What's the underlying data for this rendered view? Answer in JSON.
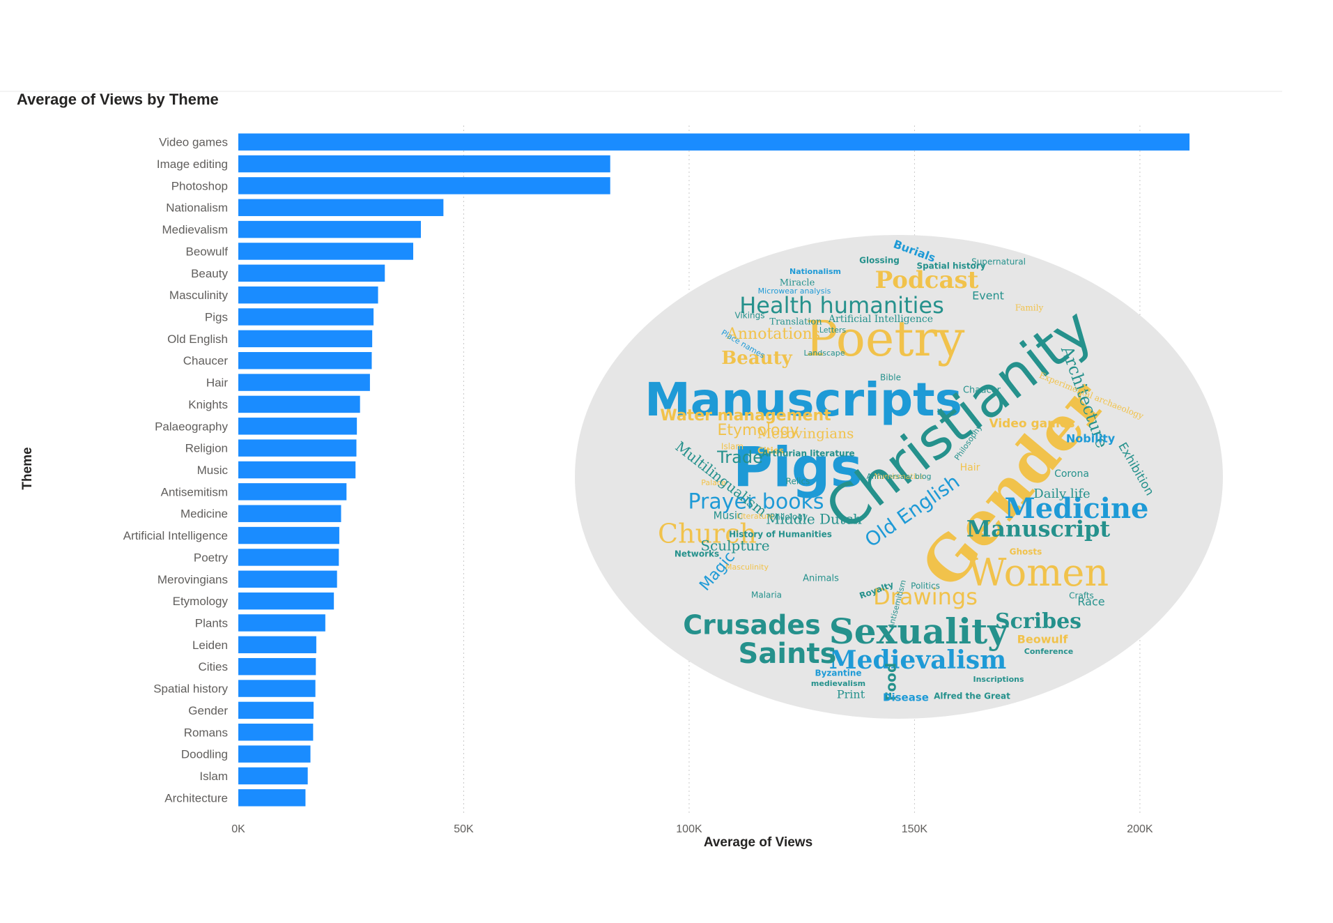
{
  "chart_data": {
    "type": "bar",
    "orientation": "horizontal",
    "title": "Average of Views by Theme",
    "xlabel": "Average of Views",
    "ylabel": "Theme",
    "xlim": [
      0,
      230000
    ],
    "x_ticks": [
      {
        "value": 0,
        "label": "0K"
      },
      {
        "value": 50000,
        "label": "50K"
      },
      {
        "value": 100000,
        "label": "100K"
      },
      {
        "value": 150000,
        "label": "150K"
      },
      {
        "value": 200000,
        "label": "200K"
      }
    ],
    "grid": "vertical dotted",
    "legend": "none",
    "bar_color": "#1a8cff",
    "categories": [
      "Video games",
      "Image editing",
      "Photoshop",
      "Nationalism",
      "Medievalism",
      "Beowulf",
      "Beauty",
      "Masculinity",
      "Pigs",
      "Old English",
      "Chaucer",
      "Hair",
      "Knights",
      "Palaeography",
      "Religion",
      "Music",
      "Antisemitism",
      "Medicine",
      "Artificial Intelligence",
      "Poetry",
      "Merovingians",
      "Etymology",
      "Plants",
      "Leiden",
      "Cities",
      "Spatial history",
      "Gender",
      "Romans",
      "Doodling",
      "Islam",
      "Architecture"
    ],
    "values": [
      211000,
      82500,
      82500,
      45500,
      40500,
      38800,
      32500,
      31000,
      30000,
      29700,
      29600,
      29200,
      27000,
      26300,
      26200,
      26000,
      24000,
      22800,
      22400,
      22300,
      21900,
      21200,
      19300,
      17300,
      17200,
      17100,
      16700,
      16600,
      16000,
      15400,
      14900
    ]
  },
  "wordcloud": {
    "colors": {
      "blue": "#1e9ad6",
      "teal": "#25918c",
      "gold": "#f1c24b",
      "gray": "#e6e6e6"
    },
    "words": [
      {
        "text": "Manuscripts",
        "color": "blue",
        "size": 66,
        "weight": "bold",
        "family": "sans",
        "rotate": 0
      },
      {
        "text": "Pigs",
        "color": "blue",
        "size": 78,
        "weight": "bold",
        "family": "sans",
        "rotate": 0
      },
      {
        "text": "Christianity",
        "color": "teal",
        "size": 80,
        "weight": "normal",
        "family": "sans",
        "rotate": -38
      },
      {
        "text": "Gender",
        "color": "gold",
        "size": 86,
        "weight": "bold",
        "family": "serif",
        "rotate": -50
      },
      {
        "text": "Poetry",
        "color": "gold",
        "size": 70,
        "weight": "normal",
        "family": "serif",
        "rotate": 0
      },
      {
        "text": "Women",
        "color": "gold",
        "size": 54,
        "weight": "normal",
        "family": "serif",
        "rotate": 0
      },
      {
        "text": "Sexuality",
        "color": "teal",
        "size": 50,
        "weight": "bold",
        "family": "serif",
        "rotate": 0
      },
      {
        "text": "Health humanities",
        "color": "teal",
        "size": 32,
        "weight": "normal",
        "family": "sans",
        "rotate": 0
      },
      {
        "text": "Podcast",
        "color": "gold",
        "size": 34,
        "weight": "bold",
        "family": "serif",
        "rotate": 0
      },
      {
        "text": "Medicine",
        "color": "blue",
        "size": 40,
        "weight": "bold",
        "family": "serif",
        "rotate": 0
      },
      {
        "text": "Manuscript",
        "color": "teal",
        "size": 32,
        "weight": "bold",
        "family": "serif",
        "rotate": 0
      },
      {
        "text": "Medievalism",
        "color": "blue",
        "size": 36,
        "weight": "bold",
        "family": "serif",
        "rotate": 0
      },
      {
        "text": "Crusades",
        "color": "teal",
        "size": 38,
        "weight": "bold",
        "family": "sans",
        "rotate": 0
      },
      {
        "text": "Saints",
        "color": "teal",
        "size": 40,
        "weight": "bold",
        "family": "sans",
        "rotate": 0
      },
      {
        "text": "Church",
        "color": "gold",
        "size": 38,
        "weight": "normal",
        "family": "serif",
        "rotate": 0
      },
      {
        "text": "Prayer books",
        "color": "blue",
        "size": 30,
        "weight": "normal",
        "family": "sans",
        "rotate": 0
      },
      {
        "text": "Water management",
        "color": "gold",
        "size": 22,
        "weight": "bold",
        "family": "sans",
        "rotate": 0
      },
      {
        "text": "Drawings",
        "color": "gold",
        "size": 32,
        "weight": "normal",
        "family": "sans",
        "rotate": 0
      },
      {
        "text": "Scribes",
        "color": "teal",
        "size": 30,
        "weight": "bold",
        "family": "serif",
        "rotate": 0
      },
      {
        "text": "Old English",
        "color": "blue",
        "size": 28,
        "weight": "normal",
        "family": "sans",
        "rotate": -35
      },
      {
        "text": "Architecture",
        "color": "teal",
        "size": 24,
        "weight": "normal",
        "family": "serif",
        "rotate": 70
      },
      {
        "text": "Beauty",
        "color": "gold",
        "size": 26,
        "weight": "bold",
        "family": "serif",
        "rotate": 0
      },
      {
        "text": "Annotations",
        "color": "gold",
        "size": 22,
        "weight": "normal",
        "family": "serif",
        "rotate": 0
      },
      {
        "text": "Multilingualism",
        "color": "teal",
        "size": 20,
        "weight": "normal",
        "family": "serif",
        "rotate": 38
      },
      {
        "text": "Trade",
        "color": "teal",
        "size": 24,
        "weight": "normal",
        "family": "sans",
        "rotate": 0
      },
      {
        "text": "Etymology",
        "color": "gold",
        "size": 22,
        "weight": "normal",
        "family": "sans",
        "rotate": 0
      },
      {
        "text": "Sculpture",
        "color": "teal",
        "size": 20,
        "weight": "normal",
        "family": "serif",
        "rotate": 0
      },
      {
        "text": "Middle Dutch",
        "color": "teal",
        "size": 20,
        "weight": "normal",
        "family": "serif",
        "rotate": 0
      },
      {
        "text": "Magic",
        "color": "blue",
        "size": 22,
        "weight": "normal",
        "family": "sans",
        "rotate": -50
      },
      {
        "text": "Food",
        "color": "teal",
        "size": 20,
        "weight": "bold",
        "family": "sans",
        "rotate": -90
      },
      {
        "text": "Merovingians",
        "color": "gold",
        "size": 20,
        "weight": "normal",
        "family": "serif",
        "rotate": 0
      },
      {
        "text": "Video games",
        "color": "gold",
        "size": 17,
        "weight": "bold",
        "family": "sans",
        "rotate": 0
      },
      {
        "text": "Daily life",
        "color": "teal",
        "size": 18,
        "weight": "normal",
        "family": "serif",
        "rotate": 0
      },
      {
        "text": "Artificial Intelligence",
        "color": "teal",
        "size": 14,
        "weight": "normal",
        "family": "serif",
        "rotate": 0
      },
      {
        "text": "Nobility",
        "color": "blue",
        "size": 16,
        "weight": "bold",
        "family": "sans",
        "rotate": 0
      },
      {
        "text": "Exhibition",
        "color": "teal",
        "size": 17,
        "weight": "normal",
        "family": "sans",
        "rotate": 60
      },
      {
        "text": "Experimental archaeology",
        "color": "gold",
        "size": 12,
        "weight": "normal",
        "family": "serif",
        "rotate": 22
      },
      {
        "text": "Race",
        "color": "teal",
        "size": 16,
        "weight": "normal",
        "family": "sans",
        "rotate": 0
      },
      {
        "text": "Beowulf",
        "color": "gold",
        "size": 16,
        "weight": "bold",
        "family": "sans",
        "rotate": 0
      },
      {
        "text": "Alfred the Great",
        "color": "teal",
        "size": 12,
        "weight": "bold",
        "family": "sans",
        "rotate": 0
      },
      {
        "text": "Print",
        "color": "teal",
        "size": 16,
        "weight": "normal",
        "family": "serif",
        "rotate": 0
      },
      {
        "text": "Disease",
        "color": "blue",
        "size": 15,
        "weight": "bold",
        "family": "sans",
        "rotate": 0
      },
      {
        "text": "Translation",
        "color": "teal",
        "size": 13,
        "weight": "normal",
        "family": "serif",
        "rotate": 0
      },
      {
        "text": "Event",
        "color": "teal",
        "size": 16,
        "weight": "normal",
        "family": "sans",
        "rotate": 0
      },
      {
        "text": "Burials",
        "color": "blue",
        "size": 16,
        "weight": "bold",
        "family": "sans",
        "rotate": 20
      },
      {
        "text": "Glossing",
        "color": "teal",
        "size": 12,
        "weight": "bold",
        "family": "sans",
        "rotate": 0
      },
      {
        "text": "Spatial history",
        "color": "teal",
        "size": 12,
        "weight": "bold",
        "family": "sans",
        "rotate": 0
      },
      {
        "text": "Supernatural",
        "color": "teal",
        "size": 12,
        "weight": "normal",
        "family": "sans",
        "rotate": 0
      },
      {
        "text": "Family",
        "color": "gold",
        "size": 12,
        "weight": "normal",
        "family": "serif",
        "rotate": 0
      },
      {
        "text": "Miracle",
        "color": "teal",
        "size": 13,
        "weight": "normal",
        "family": "serif",
        "rotate": 0
      },
      {
        "text": "Microwear analysis",
        "color": "blue",
        "size": 11,
        "weight": "normal",
        "family": "sans",
        "rotate": 0
      },
      {
        "text": "Letters",
        "color": "teal",
        "size": 11,
        "weight": "normal",
        "family": "sans",
        "rotate": 0
      },
      {
        "text": "Vikings",
        "color": "teal",
        "size": 12,
        "weight": "normal",
        "family": "sans",
        "rotate": 0
      },
      {
        "text": "Place names",
        "color": "blue",
        "size": 11,
        "weight": "normal",
        "family": "sans",
        "rotate": 30
      },
      {
        "text": "Landscape",
        "color": "teal",
        "size": 11,
        "weight": "normal",
        "family": "sans",
        "rotate": 0
      },
      {
        "text": "Bible",
        "color": "teal",
        "size": 12,
        "weight": "normal",
        "family": "sans",
        "rotate": 0
      },
      {
        "text": "Chaucer",
        "color": "teal",
        "size": 13,
        "weight": "normal",
        "family": "sans",
        "rotate": 0
      },
      {
        "text": "Philosophy",
        "color": "teal",
        "size": 11,
        "weight": "normal",
        "family": "sans",
        "rotate": -55
      },
      {
        "text": "Hair",
        "color": "gold",
        "size": 14,
        "weight": "normal",
        "family": "sans",
        "rotate": 0
      },
      {
        "text": "Islam",
        "color": "gold",
        "size": 12,
        "weight": "normal",
        "family": "sans",
        "rotate": 0
      },
      {
        "text": "Cities",
        "color": "gold",
        "size": 12,
        "weight": "bold",
        "family": "sans",
        "rotate": 0
      },
      {
        "text": "Arthurian literature",
        "color": "teal",
        "size": 12,
        "weight": "bold",
        "family": "sans",
        "rotate": 0
      },
      {
        "text": "Relics",
        "color": "teal",
        "size": 12,
        "weight": "normal",
        "family": "sans",
        "rotate": 0
      },
      {
        "text": "Palace",
        "color": "gold",
        "size": 11,
        "weight": "normal",
        "family": "sans",
        "rotate": 0
      },
      {
        "text": "Music",
        "color": "teal",
        "size": 15,
        "weight": "normal",
        "family": "sans",
        "rotate": 0
      },
      {
        "text": "Literature",
        "color": "gold",
        "size": 11,
        "weight": "normal",
        "family": "sans",
        "rotate": 0
      },
      {
        "text": "Philology",
        "color": "teal",
        "size": 12,
        "weight": "normal",
        "family": "sans",
        "rotate": 0
      },
      {
        "text": "History of Humanities",
        "color": "teal",
        "size": 12,
        "weight": "bold",
        "family": "sans",
        "rotate": 0
      },
      {
        "text": "Networks",
        "color": "teal",
        "size": 12,
        "weight": "bold",
        "family": "sans",
        "rotate": 0
      },
      {
        "text": "Masculinity",
        "color": "gold",
        "size": 11,
        "weight": "normal",
        "family": "sans",
        "rotate": 0
      },
      {
        "text": "Malaria",
        "color": "teal",
        "size": 12,
        "weight": "normal",
        "family": "sans",
        "rotate": 0
      },
      {
        "text": "Animals",
        "color": "teal",
        "size": 13,
        "weight": "normal",
        "family": "sans",
        "rotate": 0
      },
      {
        "text": "Royalty",
        "color": "teal",
        "size": 12,
        "weight": "bold",
        "family": "sans",
        "rotate": -20
      },
      {
        "text": "Antisemitism",
        "color": "teal",
        "size": 11,
        "weight": "normal",
        "family": "sans",
        "rotate": -75
      },
      {
        "text": "Politics",
        "color": "teal",
        "size": 12,
        "weight": "normal",
        "family": "sans",
        "rotate": 0
      },
      {
        "text": "Crafts",
        "color": "teal",
        "size": 12,
        "weight": "normal",
        "family": "sans",
        "rotate": 0
      },
      {
        "text": "Ghosts",
        "color": "gold",
        "size": 12,
        "weight": "bold",
        "family": "sans",
        "rotate": 0
      },
      {
        "text": "Corona",
        "color": "teal",
        "size": 14,
        "weight": "normal",
        "family": "sans",
        "rotate": 0
      },
      {
        "text": "Byzantine",
        "color": "blue",
        "size": 12,
        "weight": "bold",
        "family": "sans",
        "rotate": 0
      },
      {
        "text": "medievalism",
        "color": "teal",
        "size": 11,
        "weight": "bold",
        "family": "sans",
        "rotate": 0
      },
      {
        "text": "Inscriptions",
        "color": "teal",
        "size": 11,
        "weight": "bold",
        "family": "sans",
        "rotate": 0
      },
      {
        "text": "Conference",
        "color": "teal",
        "size": 11,
        "weight": "bold",
        "family": "sans",
        "rotate": 0
      },
      {
        "text": "Nationalism",
        "color": "blue",
        "size": 11,
        "weight": "bold",
        "family": "sans",
        "rotate": 0
      },
      {
        "text": "Numismatics",
        "color": "gold",
        "size": 11,
        "weight": "normal",
        "family": "sans",
        "rotate": 0
      },
      {
        "text": "Anniversary blog",
        "color": "teal",
        "size": 11,
        "weight": "normal",
        "family": "sans",
        "rotate": 0
      }
    ]
  }
}
